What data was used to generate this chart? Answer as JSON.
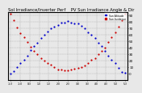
{
  "title": "Sol Irradiance/Inverter Perf    PV Sun Irradiance Angle & Dir",
  "legend": [
    "Sun Altitude",
    "Sun Incidence"
  ],
  "legend_colors": [
    "#0000cc",
    "#cc0000"
  ],
  "ylim": [
    -10,
    95
  ],
  "y_right_labels": [
    "90",
    "80",
    "70",
    "60",
    "50",
    "40",
    "30",
    "20",
    "10",
    "0",
    "-1"
  ],
  "background_color": "#e8e8e8",
  "grid_color": "#aaaaaa",
  "title_fontsize": 3.8,
  "tick_fontsize": 3.0,
  "dot_size": 2.5,
  "n_points": 35
}
